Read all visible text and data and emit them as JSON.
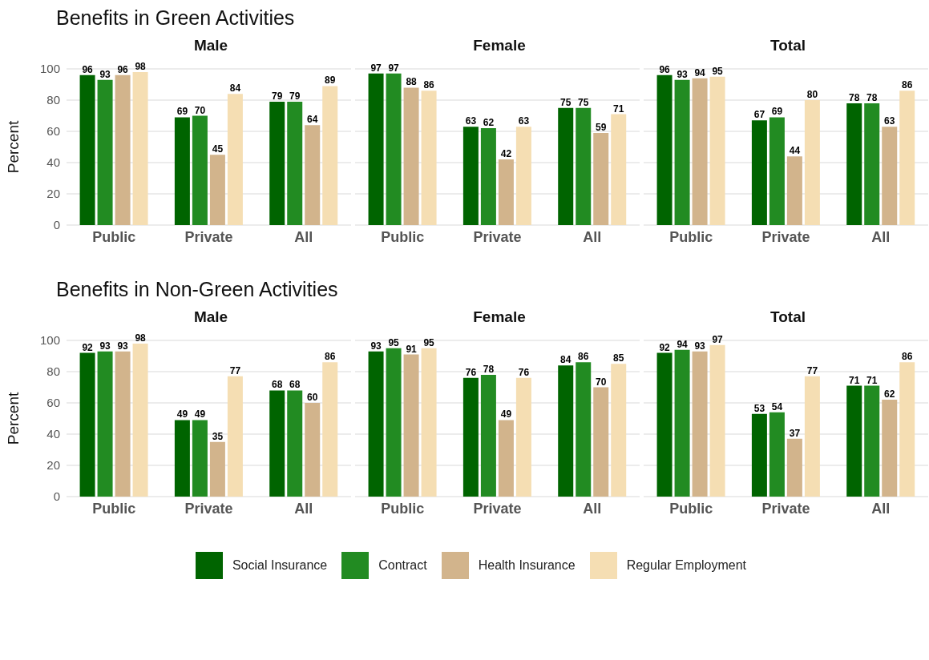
{
  "chart_data": [
    {
      "type": "bar",
      "title": "Benefits in Green Activities",
      "subtitle": "Male",
      "ylabel": "Percent",
      "categories": [
        "Public",
        "Private",
        "All"
      ],
      "ylim": [
        0,
        100
      ],
      "yticks": [
        0,
        20,
        40,
        60,
        80,
        100
      ],
      "grid": "y",
      "data_labels": true,
      "legend": "bottom",
      "series": [
        {
          "name": "Social Insurance",
          "color": "#006400",
          "values": [
            96,
            69,
            79
          ]
        },
        {
          "name": "Contract",
          "color": "#228b22",
          "values": [
            93,
            70,
            79
          ]
        },
        {
          "name": "Health Insurance",
          "color": "#d2b48c",
          "values": [
            96,
            45,
            64
          ]
        },
        {
          "name": "Regular Employment",
          "color": "#f5deb3",
          "values": [
            98,
            84,
            89
          ]
        }
      ]
    },
    {
      "type": "bar",
      "subtitle": "Female",
      "categories": [
        "Public",
        "Private",
        "All"
      ],
      "ylim": [
        0,
        100
      ],
      "yticks": [
        0,
        20,
        40,
        60,
        80,
        100
      ],
      "tick_labels": "x",
      "grid": "y",
      "data_labels": true,
      "series": [
        {
          "color": "#006400",
          "values": [
            97,
            63,
            75
          ]
        },
        {
          "color": "#228b22",
          "values": [
            97,
            62,
            75
          ]
        },
        {
          "color": "#d2b48c",
          "values": [
            88,
            42,
            59
          ]
        },
        {
          "color": "#f5deb3",
          "values": [
            86,
            63,
            71
          ]
        }
      ]
    },
    {
      "type": "bar",
      "subtitle": "Total",
      "categories": [
        "Public",
        "Private",
        "All"
      ],
      "ylim": [
        0,
        100
      ],
      "yticks": [
        0,
        20,
        40,
        60,
        80,
        100
      ],
      "tick_labels": "x",
      "grid": "y",
      "data_labels": true,
      "series": [
        {
          "color": "#006400",
          "values": [
            96,
            67,
            78
          ]
        },
        {
          "color": "#228b22",
          "values": [
            93,
            69,
            78
          ]
        },
        {
          "color": "#d2b48c",
          "values": [
            94,
            44,
            63
          ]
        },
        {
          "color": "#f5deb3",
          "values": [
            95,
            80,
            86
          ]
        }
      ]
    },
    {
      "type": "bar",
      "title": "Benefits in Non-Green Activities",
      "subtitle": "Male",
      "ylabel": "Percent",
      "categories": [
        "Public",
        "Private",
        "All"
      ],
      "ylim": [
        0,
        100
      ],
      "yticks": [
        0,
        20,
        40,
        60,
        80,
        100
      ],
      "grid": "y",
      "data_labels": true,
      "series": [
        {
          "color": "#006400",
          "values": [
            92,
            49,
            68
          ]
        },
        {
          "color": "#228b22",
          "values": [
            93,
            49,
            68
          ]
        },
        {
          "color": "#d2b48c",
          "values": [
            93,
            35,
            60
          ]
        },
        {
          "color": "#f5deb3",
          "values": [
            98,
            77,
            86
          ]
        }
      ]
    },
    {
      "type": "bar",
      "subtitle": "Female",
      "categories": [
        "Public",
        "Private",
        "All"
      ],
      "ylim": [
        0,
        100
      ],
      "yticks": [
        0,
        20,
        40,
        60,
        80,
        100
      ],
      "tick_labels": "x",
      "grid": "y",
      "data_labels": true,
      "series": [
        {
          "color": "#006400",
          "values": [
            93,
            76,
            84
          ]
        },
        {
          "color": "#228b22",
          "values": [
            95,
            78,
            86
          ]
        },
        {
          "color": "#d2b48c",
          "values": [
            91,
            49,
            70
          ]
        },
        {
          "color": "#f5deb3",
          "values": [
            95,
            76,
            85
          ]
        }
      ]
    },
    {
      "type": "bar",
      "subtitle": "Total",
      "categories": [
        "Public",
        "Private",
        "All"
      ],
      "ylim": [
        0,
        100
      ],
      "yticks": [
        0,
        20,
        40,
        60,
        80,
        100
      ],
      "tick_labels": "x",
      "grid": "y",
      "data_labels": true,
      "series": [
        {
          "color": "#006400",
          "values": [
            92,
            53,
            71
          ]
        },
        {
          "color": "#228b22",
          "values": [
            94,
            54,
            71
          ]
        },
        {
          "color": "#d2b48c",
          "values": [
            93,
            37,
            62
          ]
        },
        {
          "color": "#f5deb3",
          "values": [
            97,
            77,
            86
          ]
        }
      ]
    }
  ]
}
